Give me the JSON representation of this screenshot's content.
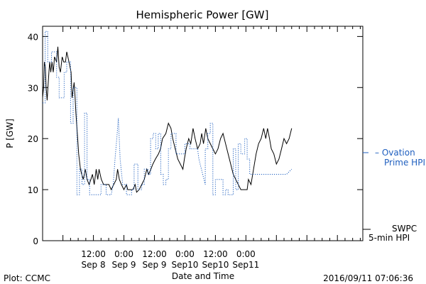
{
  "chart_data": {
    "type": "line",
    "title": "Hemispheric Power [GW]",
    "ylabel": "P [GW]",
    "xlabel": "Date and Time",
    "ylim": [
      0,
      42
    ],
    "yticks": [
      0,
      10,
      20,
      30,
      40
    ],
    "xlim": [
      -8,
      118
    ],
    "x_unit": "hours since 2016-09-08 00:00",
    "xticks": [
      {
        "x": 12,
        "line1": "12:00",
        "line2": "Sep 8"
      },
      {
        "x": 24,
        "line1": "0:00",
        "line2": "Sep 9"
      },
      {
        "x": 36,
        "line1": "12:00",
        "line2": "Sep 9"
      },
      {
        "x": 48,
        "line1": "0:00",
        "line2": "Sep10"
      },
      {
        "x": 60,
        "line1": "12:00",
        "line2": "Sep10"
      },
      {
        "x": 72,
        "line1": "0:00",
        "line2": "Sep11"
      }
    ],
    "series": [
      {
        "name": "SWPC 5-min HPI",
        "color": "#000000",
        "style": "solid",
        "points": [
          [
            -8,
            28
          ],
          [
            -7.6,
            30
          ],
          [
            -7.3,
            35
          ],
          [
            -6.9,
            34
          ],
          [
            -6.6,
            30
          ],
          [
            -6.2,
            27.5
          ],
          [
            -5.9,
            30
          ],
          [
            -5.5,
            33
          ],
          [
            -5.2,
            35
          ],
          [
            -4.8,
            33
          ],
          [
            -4.3,
            35
          ],
          [
            -3.8,
            33
          ],
          [
            -3.3,
            36
          ],
          [
            -2.5,
            35
          ],
          [
            -2,
            38
          ],
          [
            -1.5,
            34
          ],
          [
            -1,
            33
          ],
          [
            -0.3,
            36
          ],
          [
            0.3,
            35
          ],
          [
            1,
            35
          ],
          [
            1.5,
            37
          ],
          [
            2.4,
            35
          ],
          [
            3.2,
            33
          ],
          [
            3.6,
            28
          ],
          [
            4.4,
            31
          ],
          [
            4.8,
            28
          ],
          [
            5.1,
            25
          ],
          [
            5.8,
            20
          ],
          [
            6.2,
            17
          ],
          [
            6.9,
            14
          ],
          [
            7.4,
            13
          ],
          [
            8,
            12
          ],
          [
            8.8,
            14
          ],
          [
            9.5,
            12
          ],
          [
            10.3,
            11
          ],
          [
            11,
            12
          ],
          [
            11.6,
            13
          ],
          [
            12.3,
            11
          ],
          [
            13.1,
            14
          ],
          [
            13.7,
            12
          ],
          [
            14.2,
            14
          ],
          [
            15.1,
            12
          ],
          [
            16,
            11
          ],
          [
            17,
            11
          ],
          [
            18.1,
            11
          ],
          [
            19,
            10
          ],
          [
            20,
            11
          ],
          [
            21,
            12
          ],
          [
            21.5,
            14
          ],
          [
            22.2,
            12
          ],
          [
            23,
            11
          ],
          [
            24,
            10
          ],
          [
            25,
            11
          ],
          [
            25.5,
            10
          ],
          [
            26.5,
            10
          ],
          [
            27.5,
            10
          ],
          [
            28.4,
            11
          ],
          [
            29,
            9.5
          ],
          [
            30,
            10
          ],
          [
            31,
            11
          ],
          [
            32,
            12
          ],
          [
            33,
            14
          ],
          [
            33.7,
            13
          ],
          [
            34.6,
            14
          ],
          [
            35.4,
            15
          ],
          [
            36.4,
            16
          ],
          [
            37.6,
            17
          ],
          [
            38.4,
            18
          ],
          [
            39.2,
            20
          ],
          [
            40.5,
            21
          ],
          [
            41.5,
            23
          ],
          [
            42.5,
            22
          ],
          [
            43.2,
            20
          ],
          [
            44.2,
            18
          ],
          [
            45.2,
            16
          ],
          [
            46.2,
            15
          ],
          [
            47.2,
            14
          ],
          [
            47.8,
            16
          ],
          [
            48.5,
            18
          ],
          [
            49.5,
            20
          ],
          [
            50.3,
            19
          ],
          [
            51.2,
            22
          ],
          [
            52,
            20
          ],
          [
            53,
            18
          ],
          [
            54,
            19
          ],
          [
            54.6,
            21
          ],
          [
            55.3,
            19
          ],
          [
            56.2,
            22
          ],
          [
            57,
            20
          ],
          [
            58,
            19
          ],
          [
            59,
            18
          ],
          [
            60,
            17
          ],
          [
            61,
            18
          ],
          [
            62,
            20
          ],
          [
            63,
            21
          ],
          [
            64,
            19
          ],
          [
            65,
            17
          ],
          [
            66,
            15
          ],
          [
            67,
            13
          ],
          [
            68,
            12
          ],
          [
            69,
            11
          ],
          [
            70,
            10
          ],
          [
            71.5,
            10
          ],
          [
            72.5,
            10
          ],
          [
            73,
            12
          ],
          [
            74,
            11
          ],
          [
            75,
            14
          ],
          [
            76,
            17
          ],
          [
            77,
            19
          ],
          [
            78,
            20
          ],
          [
            79,
            22
          ],
          [
            79.8,
            20
          ],
          [
            80.5,
            22
          ],
          [
            81.3,
            20
          ],
          [
            82,
            18
          ],
          [
            83,
            17
          ],
          [
            84,
            15
          ],
          [
            85,
            16
          ],
          [
            86,
            18
          ],
          [
            87,
            20
          ],
          [
            88,
            19
          ],
          [
            89,
            20
          ],
          [
            90,
            22
          ]
        ]
      },
      {
        "name": "Ovation Prime HPI",
        "color": "#1f5fbf",
        "style": "dotted",
        "points": [
          [
            -8,
            27
          ],
          [
            -7,
            27
          ],
          [
            -7,
            41
          ],
          [
            -6,
            41
          ],
          [
            -6,
            35
          ],
          [
            -4.5,
            35
          ],
          [
            -4.5,
            37
          ],
          [
            -2.5,
            37
          ],
          [
            -2.5,
            32
          ],
          [
            -1.5,
            32
          ],
          [
            -1.5,
            28
          ],
          [
            0.5,
            28
          ],
          [
            0.5,
            33
          ],
          [
            1.5,
            33
          ],
          [
            1.5,
            35
          ],
          [
            3,
            35
          ],
          [
            3,
            23
          ],
          [
            4,
            23
          ],
          [
            4,
            30
          ],
          [
            5.5,
            30
          ],
          [
            5.5,
            9
          ],
          [
            6.5,
            9
          ],
          [
            6.5,
            14
          ],
          [
            7.5,
            14
          ],
          [
            7.5,
            11
          ],
          [
            8.5,
            11
          ],
          [
            8.5,
            25
          ],
          [
            9.5,
            25
          ],
          [
            9.5,
            12
          ],
          [
            10.5,
            12
          ],
          [
            10.5,
            9
          ],
          [
            15,
            9
          ],
          [
            15,
            11
          ],
          [
            17,
            11
          ],
          [
            17,
            9
          ],
          [
            19,
            9
          ],
          [
            19.8,
            11
          ],
          [
            20.5,
            16
          ],
          [
            21.2,
            20
          ],
          [
            21.8,
            24
          ],
          [
            22.5,
            16
          ],
          [
            23.5,
            11
          ],
          [
            25,
            11
          ],
          [
            25,
            9
          ],
          [
            27,
            9
          ],
          [
            27,
            10
          ],
          [
            28,
            10
          ],
          [
            28,
            15
          ],
          [
            29.5,
            15
          ],
          [
            29.5,
            10
          ],
          [
            31,
            10
          ],
          [
            31,
            11
          ],
          [
            32,
            11
          ],
          [
            32,
            14
          ],
          [
            33.5,
            14
          ],
          [
            33.5,
            13
          ],
          [
            34.5,
            13
          ],
          [
            34.5,
            20
          ],
          [
            35.5,
            20
          ],
          [
            35.5,
            21
          ],
          [
            36.5,
            21
          ],
          [
            36.5,
            18
          ],
          [
            37.5,
            18
          ],
          [
            37.5,
            21
          ],
          [
            38.5,
            21
          ],
          [
            38.5,
            13
          ],
          [
            39.5,
            13
          ],
          [
            39.5,
            11
          ],
          [
            40.5,
            11
          ],
          [
            40.5,
            12
          ],
          [
            41.5,
            12
          ],
          [
            41.5,
            18
          ],
          [
            42.5,
            18
          ],
          [
            42.5,
            21
          ],
          [
            44.5,
            21
          ],
          [
            44.5,
            17
          ],
          [
            48,
            17
          ],
          [
            48,
            19
          ],
          [
            50,
            19
          ],
          [
            50,
            18
          ],
          [
            53,
            18
          ],
          [
            53.5,
            16
          ],
          [
            54.5,
            14
          ],
          [
            55.5,
            12
          ],
          [
            56,
            11
          ],
          [
            56,
            18
          ],
          [
            57,
            18
          ],
          [
            57,
            21
          ],
          [
            58,
            21
          ],
          [
            58,
            23
          ],
          [
            59,
            23
          ],
          [
            59,
            9
          ],
          [
            60,
            9
          ],
          [
            60,
            12
          ],
          [
            63,
            12
          ],
          [
            63,
            9
          ],
          [
            64,
            9
          ],
          [
            64,
            10
          ],
          [
            65,
            10
          ],
          [
            65,
            9
          ],
          [
            67,
            9
          ],
          [
            67,
            18
          ],
          [
            68,
            18
          ],
          [
            68,
            10
          ],
          [
            69,
            10
          ],
          [
            69,
            19
          ],
          [
            70,
            19
          ],
          [
            70,
            17
          ],
          [
            71.5,
            17
          ],
          [
            71.5,
            20
          ],
          [
            72.5,
            20
          ],
          [
            72.5,
            16
          ],
          [
            73.5,
            16
          ],
          [
            73.5,
            13
          ],
          [
            88,
            13
          ],
          [
            90,
            14
          ]
        ]
      }
    ],
    "legend": [
      {
        "text": "– Ovation",
        "text2": "Prime HPI",
        "color": "#1f5fbf",
        "placement": "right-middle"
      },
      {
        "text": "SWPC",
        "text2": "5-min HPI",
        "color": "#000000",
        "placement": "right-bottom"
      }
    ],
    "grid": false
  },
  "footer": {
    "plot_credit": "Plot: CCMC",
    "timestamp": "2016/09/11 07:06:36"
  }
}
